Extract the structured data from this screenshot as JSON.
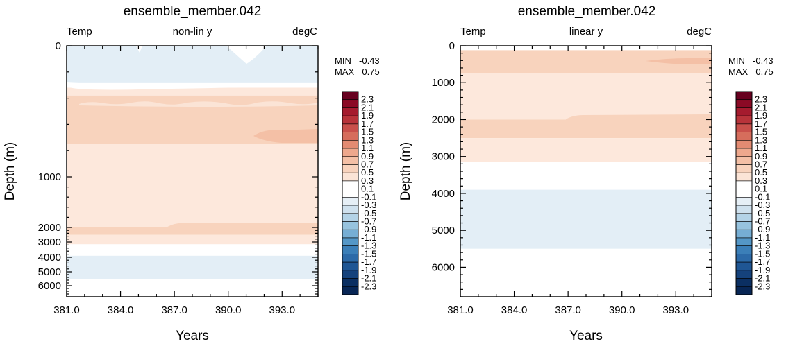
{
  "chart_data": [
    {
      "type": "heatmap",
      "title": "ensemble_member.042",
      "left_label": "Temp",
      "center_label": "non-lin y",
      "right_label": "degC",
      "xlabel": "Years",
      "ylabel": "Depth (m)",
      "xlim": [
        381,
        395
      ],
      "x_ticks": [
        "381.0",
        "384.0",
        "387.0",
        "390.0",
        "393.0"
      ],
      "y_ticks": [
        "0",
        "1000",
        "2000",
        "3000",
        "4000",
        "5000",
        "6000"
      ],
      "y_scale": "non-linear",
      "ylim": [
        0,
        6800
      ],
      "min_label": "MIN= -0.43",
      "max_label": "MAX=  0.75",
      "bands": [
        {
          "from": 0,
          "to": 280,
          "value": -0.2
        },
        {
          "from": 280,
          "to": 320,
          "value": 0.0
        },
        {
          "from": 320,
          "to": 380,
          "value": 0.2
        },
        {
          "from": 380,
          "to": 750,
          "value": 0.4
        },
        {
          "from": 750,
          "to": 2000,
          "value": 0.2
        },
        {
          "from": 2000,
          "to": 2500,
          "value": 0.4
        },
        {
          "from": 2500,
          "to": 3150,
          "value": 0.2
        },
        {
          "from": 3150,
          "to": 3900,
          "value": 0.0
        },
        {
          "from": 3900,
          "to": 5500,
          "value": -0.2
        },
        {
          "from": 5500,
          "to": 6800,
          "value": 0.0
        }
      ]
    },
    {
      "type": "heatmap",
      "title": "ensemble_member.042",
      "left_label": "Temp",
      "center_label": "linear y",
      "right_label": "degC",
      "xlabel": "Years",
      "ylabel": "Depth (m)",
      "xlim": [
        381,
        395
      ],
      "x_ticks": [
        "381.0",
        "384.0",
        "387.0",
        "390.0",
        "393.0"
      ],
      "y_ticks": [
        "0",
        "1000",
        "2000",
        "3000",
        "4000",
        "5000",
        "6000"
      ],
      "y_scale": "linear",
      "ylim": [
        0,
        6800
      ],
      "min_label": "MIN= -0.43",
      "max_label": "MAX=  0.75",
      "bands": [
        {
          "from": 0,
          "to": 120,
          "value": 0.0
        },
        {
          "from": 120,
          "to": 750,
          "value": 0.4
        },
        {
          "from": 750,
          "to": 2000,
          "value": 0.2
        },
        {
          "from": 2000,
          "to": 2500,
          "value": 0.4
        },
        {
          "from": 2500,
          "to": 3150,
          "value": 0.2
        },
        {
          "from": 3150,
          "to": 3900,
          "value": 0.0
        },
        {
          "from": 3900,
          "to": 5500,
          "value": -0.2
        },
        {
          "from": 5500,
          "to": 6800,
          "value": 0.0
        }
      ]
    }
  ],
  "colorbar": {
    "labels": [
      "2.3",
      "2.1",
      "1.9",
      "1.7",
      "1.5",
      "1.3",
      "1.1",
      "0.9",
      "0.7",
      "0.5",
      "0.3",
      "0.1",
      "-0.1",
      "-0.3",
      "-0.5",
      "-0.7",
      "-0.9",
      "-1.1",
      "-1.3",
      "-1.5",
      "-1.7",
      "-1.9",
      "-2.1",
      "-2.3"
    ],
    "colors": [
      "#67001f",
      "#8b0a25",
      "#a51b2e",
      "#b8333a",
      "#c9504b",
      "#d66d5c",
      "#e38b72",
      "#eea88d",
      "#f4c0a6",
      "#f8d3bd",
      "#fbe4d6",
      "#ffffff",
      "#ffffff",
      "#e6eff6",
      "#cfe1ee",
      "#b4d3e7",
      "#97c3de",
      "#76aed4",
      "#5497c7",
      "#3b7fb8",
      "#2c6aa8",
      "#1f5694",
      "#15427c",
      "#0b2f62",
      "#082655"
    ]
  }
}
